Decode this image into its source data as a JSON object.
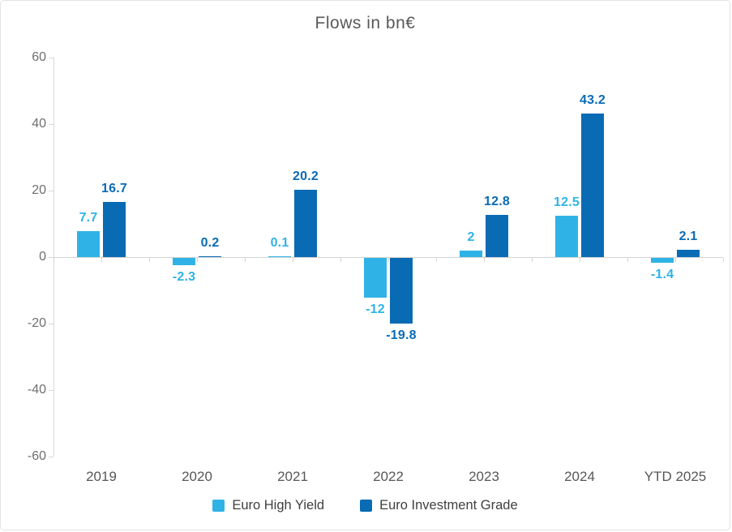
{
  "chart_data": {
    "type": "bar",
    "title": "Flows in bn€",
    "categories": [
      "2019",
      "2020",
      "2021",
      "2022",
      "2023",
      "2024",
      "YTD 2025"
    ],
    "series": [
      {
        "name": "Euro High Yield",
        "color": "#2FB3E6",
        "values": [
          7.7,
          -2.3,
          0.1,
          -12,
          2,
          12.5,
          -1.4
        ],
        "value_labels": [
          "7.7",
          "-2.3",
          "0.1",
          "-12",
          "2",
          "12.5",
          "-1.4"
        ]
      },
      {
        "name": "Euro Investment Grade",
        "color": "#0A6BB5",
        "values": [
          16.7,
          0.2,
          20.2,
          -19.8,
          12.8,
          43.2,
          2.1
        ],
        "value_labels": [
          "16.7",
          "0.2",
          "20.2",
          "-19.8",
          "12.8",
          "43.2",
          "2.1"
        ]
      }
    ],
    "xlabel": "",
    "ylabel": "",
    "y_ticks": [
      60,
      40,
      20,
      0,
      -20,
      -40,
      -60
    ],
    "y_tick_labels": [
      "60",
      "40",
      "20",
      "0",
      "-20",
      "-40",
      "-60"
    ],
    "ylim": [
      -60,
      60
    ],
    "grid": false,
    "legend_position": "bottom"
  },
  "colors": {
    "title_text": "#58595b",
    "axis_line": "#d9d9d9",
    "zero_line": "#d4d4d4",
    "y_tick_text": "#6f6f6f",
    "x_tick_text": "#575757",
    "legend_text": "#3f3f3f",
    "background": "#ffffff"
  }
}
